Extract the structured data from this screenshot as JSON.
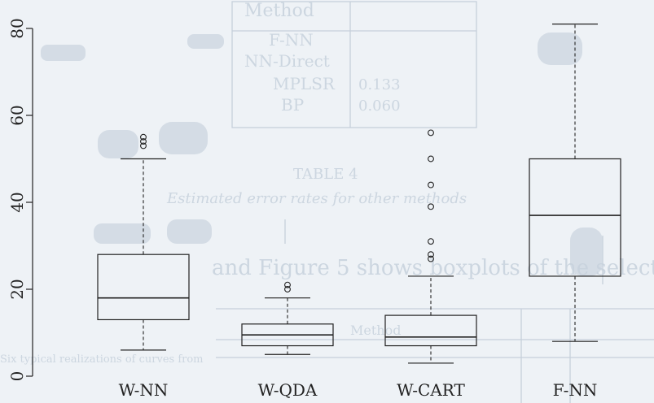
{
  "chart_data": {
    "type": "box",
    "title": "",
    "xlabel": "",
    "ylabel": "",
    "ylim": [
      0,
      80
    ],
    "yticks": [
      0,
      20,
      40,
      60,
      80
    ],
    "ytick_labels": [
      "0",
      "20",
      "40",
      "60",
      "80"
    ],
    "categories": [
      "W-NN",
      "W-QDA",
      "W-CART",
      "F-NN"
    ],
    "boxes": [
      {
        "name": "W-NN",
        "whisker_low": 6,
        "q1": 13,
        "median": 18,
        "q3": 28,
        "whisker_high": 50,
        "outliers": [
          53,
          54,
          55
        ]
      },
      {
        "name": "W-QDA",
        "whisker_low": 5,
        "q1": 7,
        "median": 9.5,
        "q3": 12,
        "whisker_high": 18,
        "outliers": [
          20,
          21
        ]
      },
      {
        "name": "W-CART",
        "whisker_low": 3,
        "q1": 7,
        "median": 9,
        "q3": 14,
        "whisker_high": 23,
        "outliers": [
          27,
          28,
          31,
          39,
          44,
          50,
          56
        ]
      },
      {
        "name": "F-NN",
        "whisker_low": 8,
        "q1": 23,
        "median": 37,
        "q3": 50,
        "whisker_high": 81,
        "outliers": []
      }
    ],
    "grid": false,
    "colors": {
      "stroke": "#222222",
      "background": "#eef2f6",
      "bleed": "#9fb0c2"
    }
  }
}
